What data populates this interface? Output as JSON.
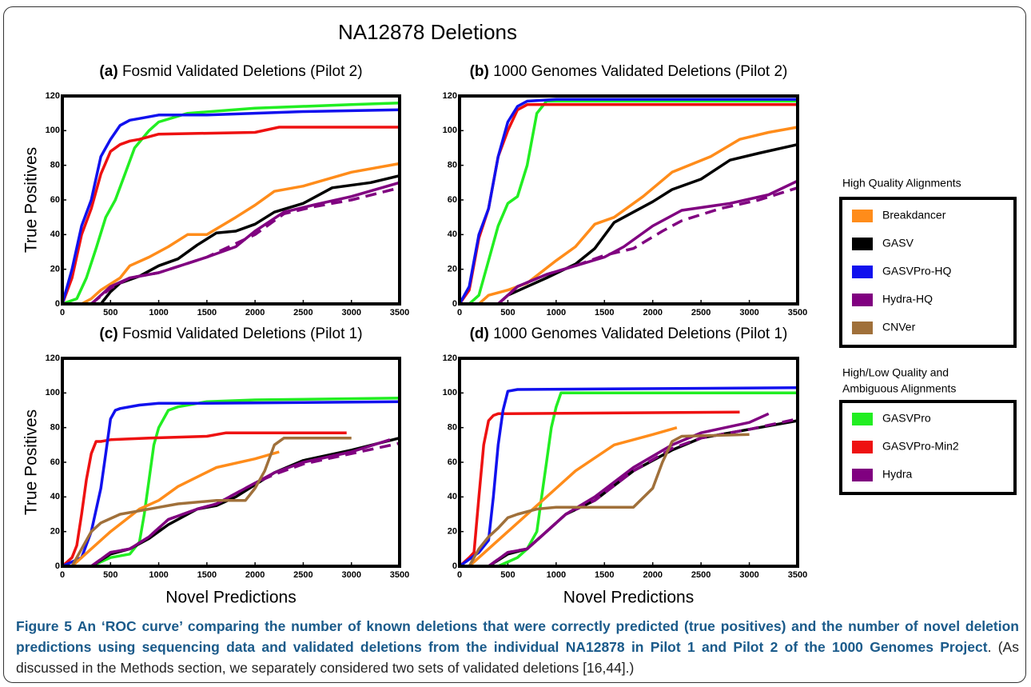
{
  "figure_title": "NA12878 Deletions",
  "chart_data": [
    {
      "type": "line",
      "panel": "(a)",
      "title": "Fosmid Validated Deletions (Pilot 2)",
      "ylabel": "True Positives",
      "xlim": [
        0,
        3500
      ],
      "xticks": [
        0,
        500,
        1000,
        1500,
        2000,
        2500,
        3000,
        3500
      ],
      "ylim": [
        0,
        120
      ],
      "yticks": [
        0,
        20,
        40,
        60,
        80,
        100,
        120
      ],
      "series": [
        {
          "name": "GASVPro",
          "color": "#22ee22",
          "x": [
            0,
            150,
            250,
            350,
            450,
            550,
            650,
            750,
            900,
            1000,
            1300,
            2000,
            3000,
            3500
          ],
          "values": [
            0,
            3,
            15,
            32,
            50,
            60,
            75,
            90,
            100,
            105,
            110,
            113,
            115,
            116
          ]
        },
        {
          "name": "GASVPro-Min2",
          "color": "#ee1111",
          "x": [
            0,
            100,
            200,
            300,
            400,
            500,
            600,
            700,
            800,
            1000,
            2000,
            2250,
            3500
          ],
          "values": [
            0,
            15,
            40,
            55,
            75,
            88,
            92,
            94,
            95,
            98,
            99,
            102,
            102
          ]
        },
        {
          "name": "GASVPro-HQ",
          "color": "#1111ee",
          "x": [
            0,
            100,
            200,
            300,
            400,
            500,
            600,
            700,
            800,
            1000,
            1500,
            2500,
            3500
          ],
          "values": [
            0,
            20,
            45,
            60,
            85,
            95,
            103,
            106,
            107,
            109,
            109,
            111,
            112
          ]
        },
        {
          "name": "Breakdancer",
          "color": "#ff8c1a",
          "x": [
            200,
            300,
            400,
            600,
            700,
            900,
            1100,
            1300,
            1500,
            1800,
            2000,
            2200,
            2500,
            3000,
            3500
          ],
          "values": [
            0,
            3,
            8,
            15,
            22,
            27,
            33,
            40,
            40,
            50,
            57,
            65,
            68,
            76,
            81
          ]
        },
        {
          "name": "GASV",
          "color": "#000000",
          "x": [
            400,
            500,
            600,
            800,
            1000,
            1200,
            1400,
            1600,
            1800,
            2000,
            2200,
            2500,
            2800,
            3200,
            3500
          ],
          "values": [
            0,
            7,
            12,
            16,
            22,
            26,
            34,
            41,
            42,
            46,
            53,
            58,
            67,
            70,
            74
          ]
        },
        {
          "name": "Hydra-HQ",
          "color": "#800080",
          "x": [
            300,
            500,
            700,
            1000,
            1500,
            1800,
            2000,
            2300,
            2600,
            3000,
            3500
          ],
          "values": [
            0,
            10,
            15,
            18,
            27,
            33,
            42,
            53,
            57,
            62,
            70
          ]
        },
        {
          "name": "Hydra",
          "color": "#800080",
          "dash": true,
          "x": [
            300,
            500,
            700,
            1000,
            1500,
            2000,
            2300,
            2600,
            3000,
            3500
          ],
          "values": [
            0,
            9,
            15,
            18,
            27,
            40,
            52,
            56,
            60,
            67
          ]
        }
      ]
    },
    {
      "type": "line",
      "panel": "(b)",
      "title": "1000 Genomes Validated Deletions (Pilot 2)",
      "xlim": [
        0,
        3500
      ],
      "xticks": [
        0,
        500,
        1000,
        1500,
        2000,
        2500,
        3000,
        3500
      ],
      "ylim": [
        0,
        120
      ],
      "yticks": [
        0,
        20,
        40,
        60,
        80,
        100,
        120
      ],
      "series": [
        {
          "name": "GASVPro",
          "color": "#22ee22",
          "x": [
            100,
            200,
            300,
            400,
            500,
            600,
            700,
            800,
            900,
            3500
          ],
          "values": [
            0,
            5,
            25,
            45,
            58,
            62,
            80,
            110,
            117,
            117
          ]
        },
        {
          "name": "GASVPro-Min2",
          "color": "#ee1111",
          "x": [
            0,
            100,
            200,
            300,
            400,
            500,
            600,
            700,
            3500
          ],
          "values": [
            0,
            8,
            38,
            55,
            85,
            100,
            112,
            115,
            115
          ]
        },
        {
          "name": "GASVPro-HQ",
          "color": "#1111ee",
          "x": [
            0,
            100,
            200,
            300,
            400,
            500,
            600,
            700,
            1000,
            3500
          ],
          "values": [
            0,
            10,
            40,
            55,
            85,
            105,
            114,
            117,
            118,
            118
          ]
        },
        {
          "name": "Breakdancer",
          "color": "#ff8c1a",
          "x": [
            200,
            300,
            500,
            700,
            1000,
            1200,
            1400,
            1600,
            1900,
            2200,
            2600,
            2900,
            3200,
            3500
          ],
          "values": [
            0,
            5,
            8,
            12,
            25,
            33,
            46,
            50,
            62,
            76,
            85,
            95,
            99,
            102
          ]
        },
        {
          "name": "GASV",
          "color": "#000000",
          "x": [
            400,
            500,
            700,
            900,
            1200,
            1400,
            1600,
            1800,
            2000,
            2200,
            2500,
            2800,
            3100,
            3500
          ],
          "values": [
            0,
            5,
            10,
            15,
            23,
            32,
            47,
            53,
            59,
            66,
            72,
            83,
            87,
            92
          ]
        },
        {
          "name": "Hydra-HQ",
          "color": "#800080",
          "x": [
            400,
            600,
            900,
            1200,
            1500,
            1700,
            2000,
            2300,
            2800,
            3200,
            3500
          ],
          "values": [
            0,
            10,
            17,
            22,
            27,
            33,
            45,
            54,
            58,
            63,
            71
          ]
        },
        {
          "name": "Hydra",
          "color": "#800080",
          "dash": true,
          "x": [
            400,
            600,
            900,
            1200,
            1500,
            1800,
            2100,
            2300,
            2700,
            3100,
            3500
          ],
          "values": [
            0,
            10,
            17,
            22,
            28,
            32,
            42,
            48,
            55,
            60,
            67
          ]
        }
      ]
    },
    {
      "type": "line",
      "panel": "(c)",
      "title": "Fosmid Validated Deletions (Pilot 1)",
      "ylabel": "True Positives",
      "xlabel": "Novel Predictions",
      "xlim": [
        0,
        3500
      ],
      "xticks": [
        0,
        500,
        1000,
        1500,
        2000,
        2500,
        3000,
        3500
      ],
      "ylim": [
        0,
        120
      ],
      "yticks": [
        0,
        20,
        40,
        60,
        80,
        100,
        120
      ],
      "series": [
        {
          "name": "GASVPro",
          "color": "#22ee22",
          "x": [
            300,
            500,
            700,
            800,
            850,
            900,
            950,
            1000,
            1100,
            1200,
            1500,
            2000,
            3500
          ],
          "values": [
            0,
            5,
            7,
            14,
            30,
            50,
            70,
            80,
            90,
            92,
            95,
            96,
            97
          ]
        },
        {
          "name": "GASVPro-Min2",
          "color": "#ee1111",
          "x": [
            0,
            100,
            150,
            200,
            250,
            300,
            350,
            400,
            500,
            900,
            1500,
            1700,
            2950
          ],
          "values": [
            0,
            5,
            12,
            30,
            50,
            65,
            72,
            72,
            73,
            74,
            75,
            77,
            77
          ]
        },
        {
          "name": "GASVPro-HQ",
          "color": "#1111ee",
          "x": [
            0,
            200,
            300,
            400,
            450,
            500,
            550,
            600,
            800,
            1000,
            1500,
            3500
          ],
          "values": [
            0,
            5,
            20,
            45,
            65,
            85,
            90,
            91,
            93,
            94,
            94,
            95
          ]
        },
        {
          "name": "Breakdancer",
          "color": "#ff8c1a",
          "x": [
            100,
            300,
            500,
            800,
            1000,
            1200,
            1600,
            2000,
            2250
          ],
          "values": [
            0,
            10,
            20,
            33,
            38,
            46,
            57,
            62,
            66
          ]
        },
        {
          "name": "GASV",
          "color": "#000000",
          "x": [
            300,
            500,
            700,
            900,
            1100,
            1400,
            1600,
            1800,
            2000,
            2200,
            2500,
            3000,
            3500
          ],
          "values": [
            0,
            7,
            10,
            16,
            24,
            33,
            35,
            40,
            47,
            54,
            61,
            67,
            74
          ]
        },
        {
          "name": "Hydra-HQ",
          "color": "#800080",
          "x": [
            300,
            500,
            700,
            900,
            1100,
            1400,
            1600,
            1800,
            2000,
            2200,
            2500,
            3000,
            3400
          ],
          "values": [
            0,
            8,
            10,
            17,
            27,
            33,
            36,
            42,
            48,
            54,
            60,
            66,
            73
          ]
        },
        {
          "name": "Hydra",
          "color": "#800080",
          "dash": true,
          "x": [
            300,
            500,
            700,
            900,
            1100,
            1400,
            1600,
            1800,
            2000,
            2200,
            2500,
            3000,
            3500
          ],
          "values": [
            0,
            8,
            10,
            17,
            27,
            33,
            36,
            42,
            48,
            53,
            59,
            65,
            71
          ]
        },
        {
          "name": "CNVer",
          "color": "#a0703a",
          "x": [
            100,
            200,
            300,
            400,
            600,
            800,
            1000,
            1200,
            1600,
            1900,
            2000,
            2100,
            2200,
            2300,
            3000
          ],
          "values": [
            0,
            10,
            20,
            25,
            30,
            32,
            34,
            36,
            38,
            38,
            45,
            55,
            70,
            74,
            74
          ]
        }
      ]
    },
    {
      "type": "line",
      "panel": "(d)",
      "title": "1000 Genomes Validated Deletions (Pilot 1)",
      "xlabel": "Novel Predictions",
      "xlim": [
        0,
        3500
      ],
      "xticks": [
        0,
        500,
        1000,
        1500,
        2000,
        2500,
        3000,
        3500
      ],
      "ylim": [
        0,
        120
      ],
      "yticks": [
        0,
        20,
        40,
        60,
        80,
        100,
        120
      ],
      "series": [
        {
          "name": "GASVPro",
          "color": "#22ee22",
          "x": [
            400,
            600,
            700,
            800,
            850,
            900,
            950,
            1000,
            1050,
            3500
          ],
          "values": [
            0,
            5,
            10,
            20,
            40,
            60,
            80,
            92,
            100,
            100
          ]
        },
        {
          "name": "GASVPro-Min2",
          "color": "#ee1111",
          "x": [
            0,
            100,
            150,
            200,
            250,
            300,
            350,
            400,
            2900
          ],
          "values": [
            0,
            5,
            8,
            40,
            70,
            84,
            87,
            88,
            89
          ]
        },
        {
          "name": "GASVPro-HQ",
          "color": "#1111ee",
          "x": [
            0,
            200,
            300,
            350,
            400,
            450,
            500,
            600,
            3500
          ],
          "values": [
            0,
            8,
            15,
            40,
            70,
            90,
            101,
            102,
            103
          ]
        },
        {
          "name": "Breakdancer",
          "color": "#ff8c1a",
          "x": [
            100,
            300,
            500,
            800,
            1000,
            1200,
            1600,
            2000,
            2250
          ],
          "values": [
            0,
            10,
            20,
            35,
            45,
            55,
            70,
            76,
            80
          ]
        },
        {
          "name": "GASV",
          "color": "#000000",
          "x": [
            300,
            500,
            700,
            900,
            1100,
            1400,
            1800,
            2200,
            2500,
            3000,
            3500
          ],
          "values": [
            0,
            7,
            10,
            20,
            30,
            38,
            55,
            67,
            74,
            79,
            84
          ]
        },
        {
          "name": "Hydra-HQ",
          "color": "#800080",
          "x": [
            300,
            500,
            700,
            900,
            1100,
            1400,
            1800,
            2200,
            2500,
            3000,
            3200
          ],
          "values": [
            0,
            8,
            10,
            20,
            30,
            40,
            57,
            70,
            77,
            83,
            88
          ]
        },
        {
          "name": "Hydra",
          "color": "#800080",
          "dash": true,
          "x": [
            300,
            500,
            700,
            900,
            1100,
            1400,
            1800,
            2200,
            2500,
            3000,
            3500
          ],
          "values": [
            0,
            8,
            10,
            20,
            30,
            38,
            55,
            68,
            74,
            79,
            85
          ]
        },
        {
          "name": "CNVer",
          "color": "#a0703a",
          "x": [
            100,
            200,
            300,
            400,
            500,
            600,
            800,
            1000,
            1400,
            1800,
            2000,
            2100,
            2200,
            2300,
            3000
          ],
          "values": [
            0,
            10,
            17,
            22,
            28,
            30,
            33,
            34,
            34,
            34,
            45,
            60,
            72,
            75,
            76
          ]
        }
      ]
    }
  ],
  "legend": [
    {
      "title": [
        "High Quality Alignments"
      ],
      "items": [
        {
          "name": "Breakdancer",
          "color": "#ff8c1a"
        },
        {
          "name": "GASV",
          "color": "#000000"
        },
        {
          "name": "GASVPro-HQ",
          "color": "#1111ee"
        },
        {
          "name": "Hydra-HQ",
          "color": "#800080"
        },
        {
          "name": "CNVer",
          "color": "#a0703a"
        }
      ]
    },
    {
      "title": [
        "High/Low Quality and",
        "Ambiguous Alignments"
      ],
      "items": [
        {
          "name": "GASVPro",
          "color": "#22ee22"
        },
        {
          "name": "GASVPro-Min2",
          "color": "#ee1111"
        },
        {
          "name": "Hydra",
          "color": "#800080"
        }
      ]
    }
  ],
  "caption": {
    "label": "Figure 5",
    "bold_text": "An ‘ROC curve’ comparing the number of known deletions that were correctly predicted (true positives) and the number of novel deletion predictions using sequencing data and validated deletions from the individual NA12878 in Pilot 1 and Pilot 2 of the 1000 Genomes Project",
    "text": ". (As discussed in the Methods section, we separately considered two sets of validated deletions [16,44].)"
  }
}
